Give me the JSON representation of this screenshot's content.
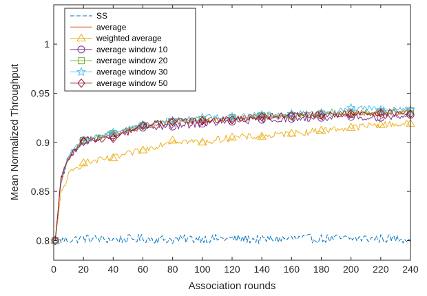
{
  "chart_data": {
    "type": "line",
    "xlabel": "Association rounds",
    "ylabel": "Mean Normalized Throughput",
    "xlim": [
      0,
      240
    ],
    "ylim": [
      0.78,
      1.04
    ],
    "xticks": [
      0,
      20,
      40,
      60,
      80,
      100,
      120,
      140,
      160,
      180,
      200,
      220,
      240
    ],
    "yticks": [
      0.8,
      0.85,
      0.9,
      0.95,
      1
    ],
    "ytick_labels": [
      "0.8",
      "0.85",
      "0.9",
      "0.95",
      "1"
    ],
    "grid": false,
    "legend_position": "top-left",
    "series": [
      {
        "name": "SS",
        "color": "#0072BD",
        "dash": "6,3",
        "marker": "none",
        "x": [
          1,
          20,
          40,
          60,
          80,
          100,
          120,
          140,
          160,
          180,
          200,
          220,
          240
        ],
        "y": [
          0.8,
          0.802,
          0.801,
          0.802,
          0.801,
          0.802,
          0.802,
          0.801,
          0.802,
          0.802,
          0.802,
          0.802,
          0.802
        ]
      },
      {
        "name": "average",
        "color": "#D95319",
        "dash": "",
        "marker": "none",
        "x": [
          1,
          5,
          10,
          20,
          40,
          60,
          80,
          100,
          120,
          140,
          160,
          180,
          200,
          220,
          240
        ],
        "y": [
          0.8,
          0.862,
          0.885,
          0.901,
          0.908,
          0.916,
          0.92,
          0.922,
          0.924,
          0.926,
          0.927,
          0.928,
          0.929,
          0.93,
          0.931
        ]
      },
      {
        "name": "weighted average",
        "color": "#EDB120",
        "dash": "",
        "marker": "triangle",
        "x": [
          1,
          5,
          10,
          20,
          40,
          60,
          80,
          100,
          120,
          140,
          160,
          180,
          200,
          220,
          240
        ],
        "y": [
          0.8,
          0.848,
          0.867,
          0.879,
          0.884,
          0.892,
          0.902,
          0.9,
          0.905,
          0.906,
          0.909,
          0.912,
          0.915,
          0.918,
          0.919
        ]
      },
      {
        "name": "average window 10",
        "color": "#7E2F8E",
        "dash": "",
        "marker": "circle",
        "x": [
          1,
          5,
          10,
          20,
          40,
          60,
          80,
          100,
          120,
          140,
          160,
          180,
          200,
          220,
          240
        ],
        "y": [
          0.8,
          0.862,
          0.884,
          0.902,
          0.907,
          0.915,
          0.916,
          0.919,
          0.921,
          0.923,
          0.924,
          0.925,
          0.926,
          0.925,
          0.928
        ]
      },
      {
        "name": "average window 20",
        "color": "#77AC30",
        "dash": "",
        "marker": "square",
        "x": [
          1,
          5,
          10,
          20,
          40,
          60,
          80,
          100,
          120,
          140,
          160,
          180,
          200,
          220,
          240
        ],
        "y": [
          0.8,
          0.862,
          0.885,
          0.902,
          0.909,
          0.917,
          0.921,
          0.923,
          0.925,
          0.927,
          0.927,
          0.929,
          0.93,
          0.931,
          0.932
        ]
      },
      {
        "name": "average window 30",
        "color": "#4DBEEE",
        "dash": "",
        "marker": "star",
        "x": [
          1,
          5,
          10,
          20,
          40,
          60,
          80,
          100,
          120,
          140,
          160,
          180,
          200,
          220,
          240
        ],
        "y": [
          0.8,
          0.862,
          0.886,
          0.902,
          0.91,
          0.918,
          0.922,
          0.925,
          0.926,
          0.928,
          0.929,
          0.93,
          0.935,
          0.933,
          0.933
        ]
      },
      {
        "name": "average window 50",
        "color": "#A2142F",
        "dash": "",
        "marker": "diamond",
        "x": [
          1,
          5,
          10,
          20,
          40,
          60,
          80,
          100,
          120,
          140,
          160,
          180,
          200,
          220,
          240
        ],
        "y": [
          0.8,
          0.862,
          0.885,
          0.901,
          0.904,
          0.917,
          0.921,
          0.922,
          0.923,
          0.926,
          0.927,
          0.928,
          0.929,
          0.93,
          0.929
        ]
      }
    ]
  }
}
